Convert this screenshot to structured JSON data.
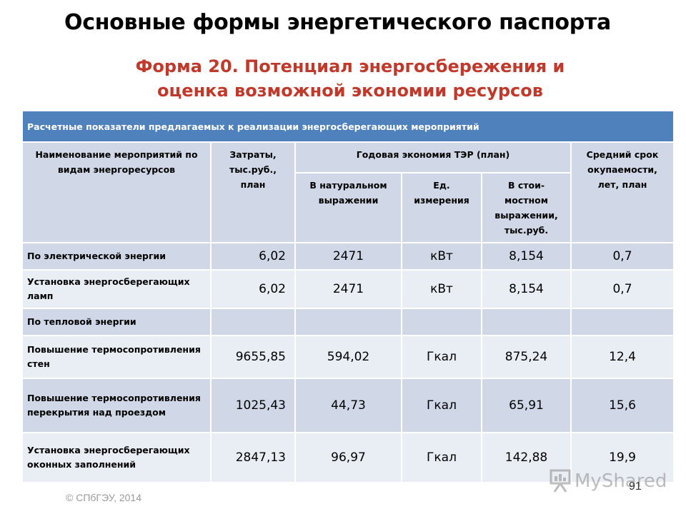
{
  "header": {
    "title": "Основные формы энергетического паспорта",
    "form_title": "Форма 20. Потенциал энергосбережения и оценка возможной экономии ресурсов"
  },
  "table": {
    "banner": "Расчетные показатели предлагаемых к реализации энергосберегающих мероприятий",
    "headers": {
      "name": "Наименование мероприятий по видам энергоресурсов",
      "cost": "Затраты, тыс.руб., план",
      "savings": "Годовая экономия ТЭР (план)",
      "natural": "В натуральном выражении",
      "unit": "Ед. измерения",
      "value": "В стои-мостном выражении, тыс.руб.",
      "payback": "Средний срок окупаемости, лет, план"
    },
    "rows": [
      {
        "name": "По электрической энергии",
        "cost": "6,02",
        "natural": "2471",
        "unit": "кВт",
        "value": "8,154",
        "payback": "0,7"
      },
      {
        "name": "Установка энергосберегающих ламп",
        "cost": "6,02",
        "natural": "2471",
        "unit": "кВт",
        "value": "8,154",
        "payback": "0,7"
      },
      {
        "name": "По тепловой энергии",
        "cost": "",
        "natural": "",
        "unit": "",
        "value": "",
        "payback": ""
      },
      {
        "name": "Повышение термосопротивления стен",
        "cost": "9655,85",
        "natural": "594,02",
        "unit": "Гкал",
        "value": "875,24",
        "payback": "12,4"
      },
      {
        "name": "Повышение термосопротивления перекрытия над проездом",
        "cost": "1025,43",
        "natural": "44,73",
        "unit": "Гкал",
        "value": "65,91",
        "payback": "15,6"
      },
      {
        "name": "Установка энергосберегающих оконных заполнений",
        "cost": "2847,13",
        "natural": "96,97",
        "unit": "Гкал",
        "value": "142,88",
        "payback": "19,9"
      }
    ]
  },
  "footer": {
    "copyright": "© СПбГЭУ, 2014",
    "page_number": "91",
    "watermark_text": "MyShared"
  },
  "colors": {
    "title_red": "#c0392b",
    "banner_blue": "#4f81bd",
    "row_dark": "#d0d8e8",
    "row_light": "#e9edf4"
  }
}
